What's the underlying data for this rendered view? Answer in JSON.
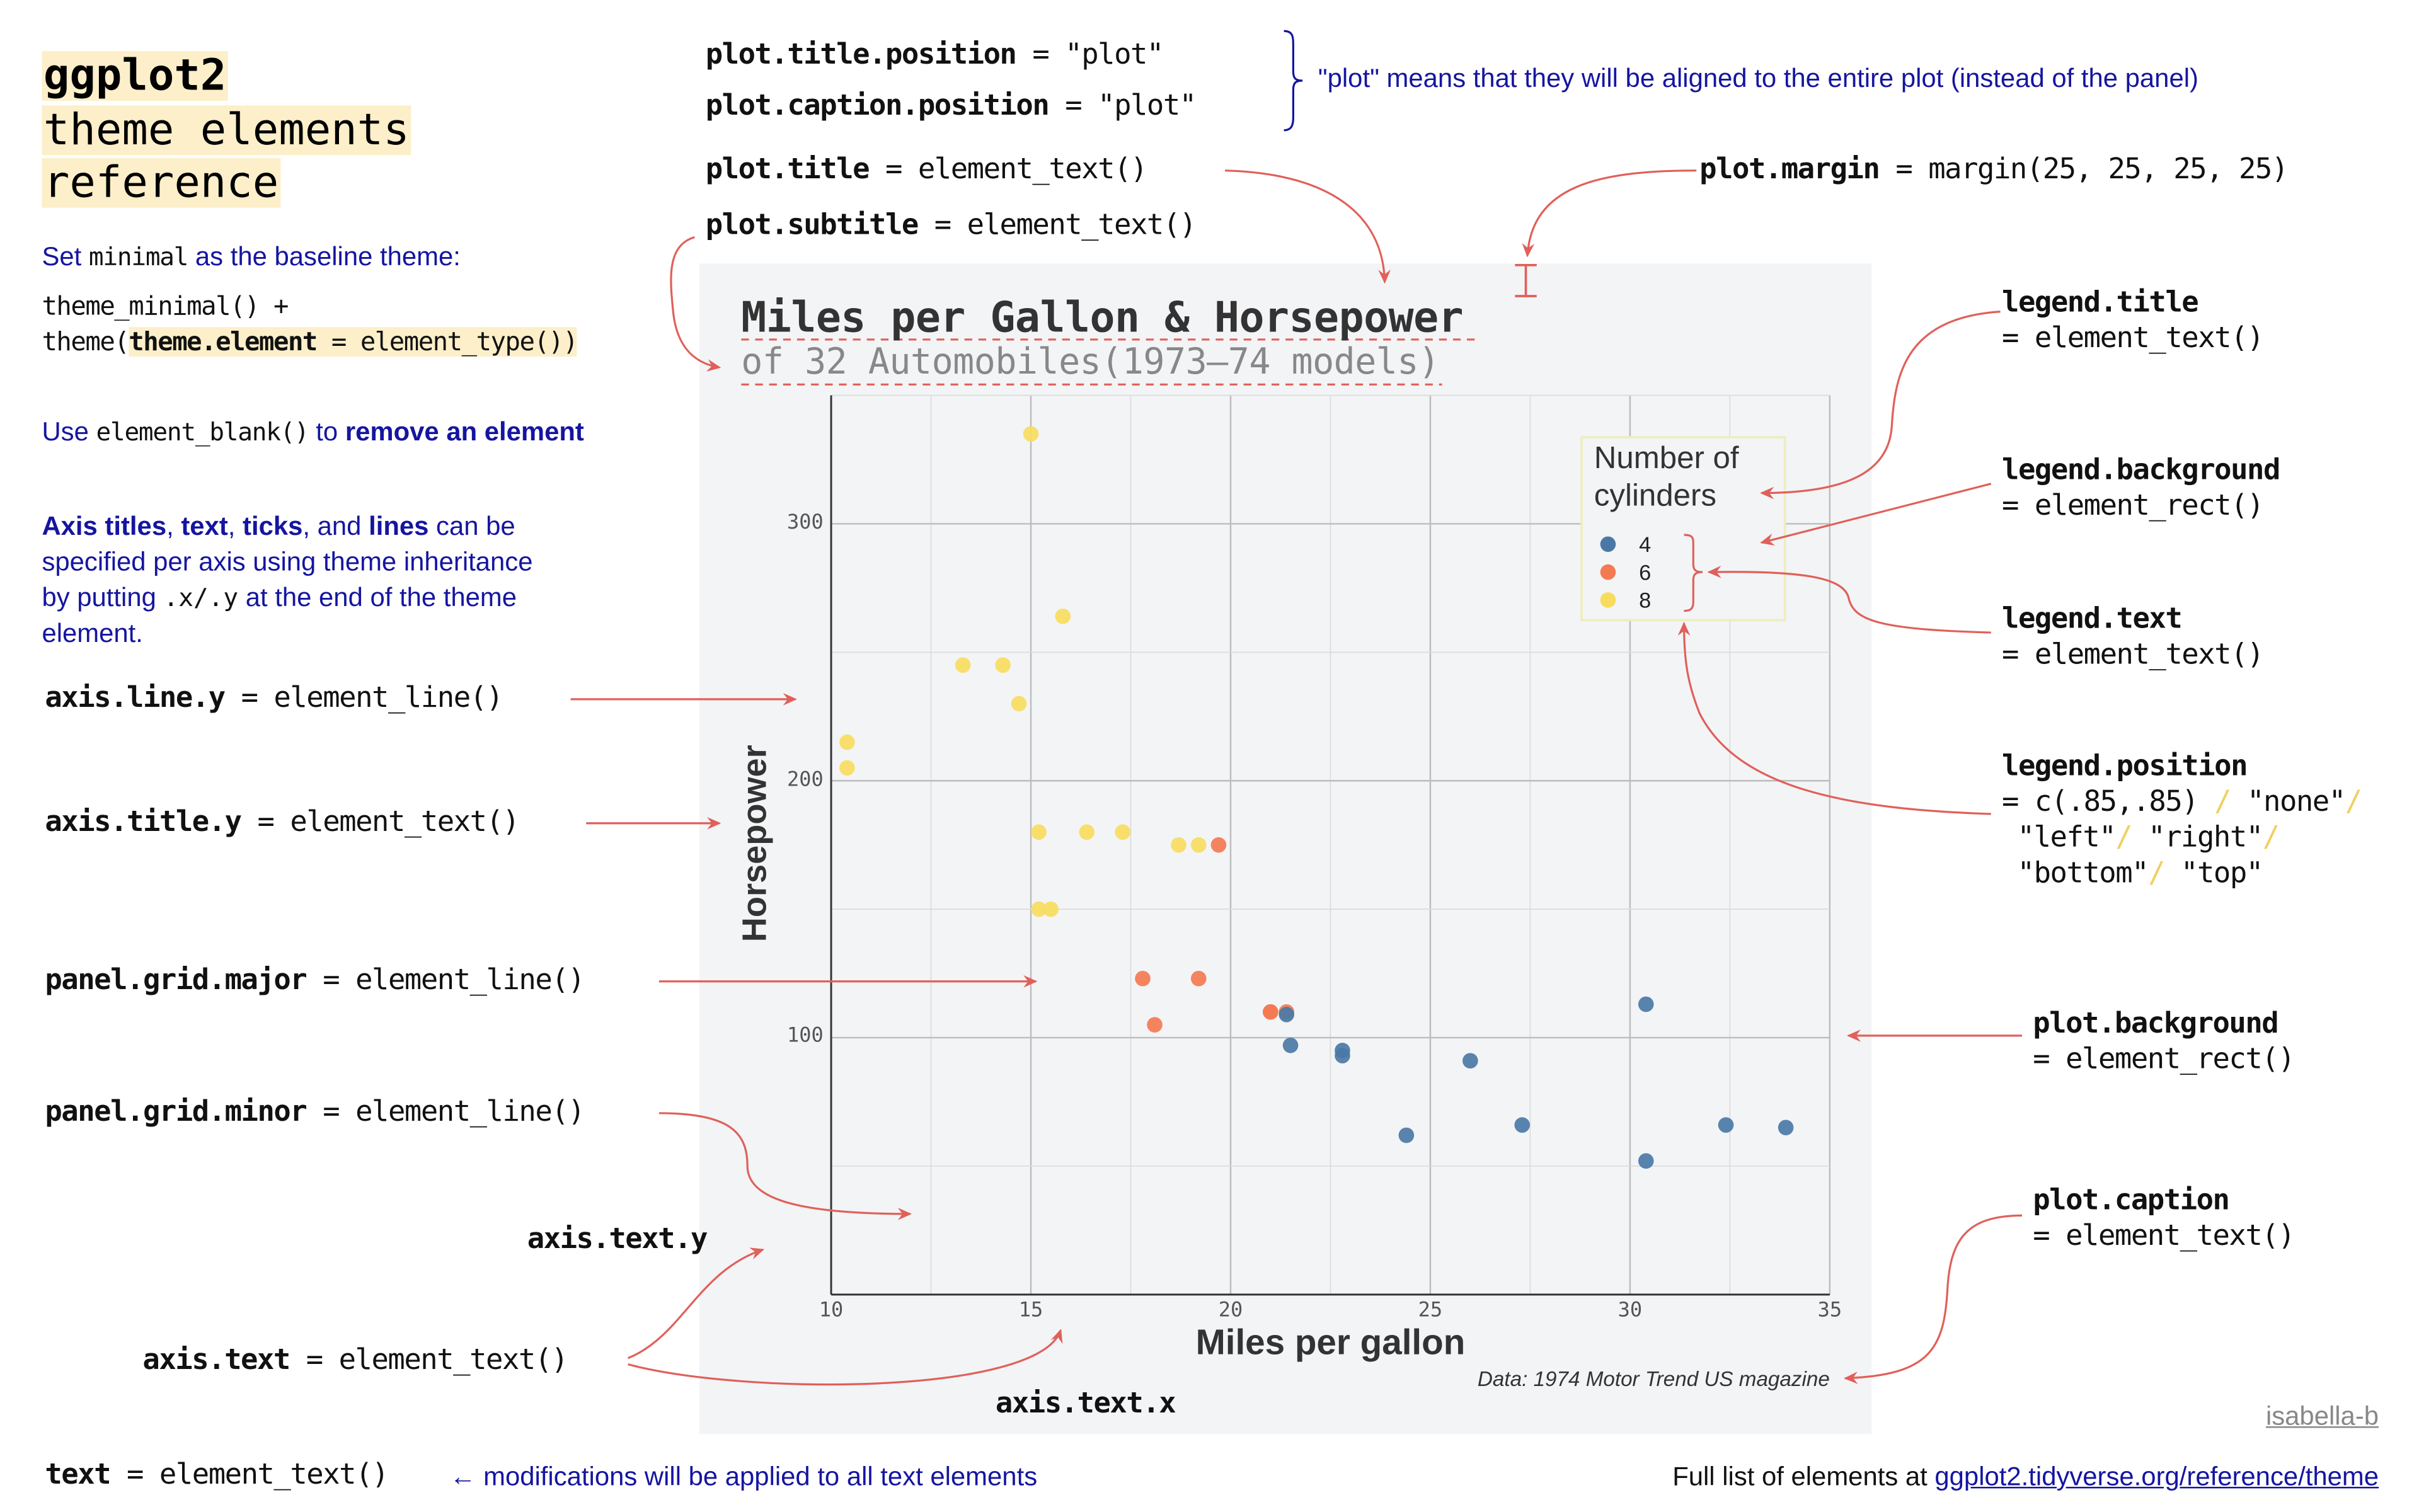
{
  "header": {
    "title_lines": [
      "ggplot2",
      "theme elements",
      "reference"
    ]
  },
  "left": {
    "baseline": {
      "pre": "Set",
      "code": "minimal",
      "post": "as the baseline theme:"
    },
    "code_line1": "theme_minimal() +",
    "code_line2_pre": "theme(",
    "code_line2_el": "theme.element",
    "code_line2_post": " = element_type())",
    "blank": {
      "pre": "Use",
      "code": "element_blank()",
      "mid": "to",
      "bold": "remove an element"
    },
    "axis_note": {
      "line1": [
        "Axis titles",
        ", ",
        "text",
        ", ",
        "ticks",
        ", and ",
        "lines",
        " can be"
      ],
      "line2": "specified per axis using theme inheritance",
      "line3_pre": "by putting",
      "line3_code": ".x/.y",
      "line3_post": "at the end of the theme",
      "line4": "element."
    }
  },
  "annotations": {
    "plot_title_position": {
      "name": "plot.title.position",
      "value": " = \"plot\""
    },
    "plot_caption_position": {
      "name": "plot.caption.position",
      "value": " = \"plot\""
    },
    "position_note": "\"plot\" means that they will be aligned to the entire plot (instead of the panel)",
    "plot_title": {
      "name": "plot.title",
      "value": " = element_text()"
    },
    "plot_subtitle": {
      "name": "plot.subtitle",
      "value": " = element_text()"
    },
    "plot_margin": {
      "name": "plot.margin",
      "value": " = margin(25, 25, 25, 25)"
    },
    "axis_line_y": {
      "name": "axis.line.y",
      "value": " = element_line()"
    },
    "axis_title_y": {
      "name": "axis.title.y",
      "value": " = element_text()"
    },
    "panel_grid_major": {
      "name": "panel.grid.major",
      "value": " = element_line()"
    },
    "panel_grid_minor": {
      "name": "panel.grid.minor",
      "value": " = element_line()"
    },
    "axis_text_y": {
      "name": "axis.text.y"
    },
    "axis_text": {
      "name": "axis.text",
      "value": " = element_text()"
    },
    "axis_text_x": {
      "name": "axis.text.x"
    },
    "text": {
      "name": "text",
      "value": " = element_text()",
      "note": "← modifications will be applied to all text elements"
    },
    "legend_title": {
      "name": "legend.title",
      "value": "= element_text()"
    },
    "legend_background": {
      "name": "legend.background",
      "value": "= element_rect()"
    },
    "legend_text": {
      "name": "legend.text",
      "value": "= element_text()"
    },
    "legend_position": {
      "name": "legend.position",
      "l1a": "= c(.85,.85) ",
      "l1b": "\"none\"",
      "l2a": " \"left\"",
      "l2b": "\"right\"",
      "l3a": " \"bottom\"",
      "l3b": "\"top\"",
      "sep": "/"
    },
    "plot_background": {
      "name": "plot.background",
      "value": "= element_rect()"
    },
    "plot_caption": {
      "name": "plot.caption",
      "value": "= element_text()"
    }
  },
  "footer": {
    "author": "isabella-b",
    "full_list_pre": "Full list of elements at ",
    "full_list_link": "ggplot2.tidyverse.org/reference/theme"
  },
  "colors": {
    "accent_arrow": "#e0605a",
    "note_blue": "#1515a0",
    "highlight": "#fcefc9",
    "plot_bg": "#f3f4f6"
  },
  "chart_data": {
    "type": "scatter",
    "title": "Miles per Gallon & Horsepower",
    "subtitle": "of 32 Automobiles(1973–74 models)",
    "xlabel": "Miles per gallon",
    "ylabel": "Horsepower",
    "caption": "Data: 1974 Motor Trend US magazine",
    "xlim": [
      10,
      35
    ],
    "ylim": [
      0,
      350
    ],
    "x_ticks": [
      "10",
      "15",
      "20",
      "25",
      "30",
      "35"
    ],
    "y_ticks": [
      "100",
      "200",
      "300"
    ],
    "grid": true,
    "legend": {
      "title_lines": [
        "Number of",
        "cylinders"
      ],
      "entries": [
        "4",
        "6",
        "8"
      ],
      "placement": "top-right (inside, c(.85,.85))"
    },
    "series_colors": {
      "4": "#4a78a6",
      "6": "#f47a52",
      "8": "#f8dc5e"
    },
    "points": [
      {
        "mpg": 21.0,
        "hp": 110,
        "cyl": "6"
      },
      {
        "mpg": 21.0,
        "hp": 110,
        "cyl": "6"
      },
      {
        "mpg": 22.8,
        "hp": 93,
        "cyl": "4"
      },
      {
        "mpg": 21.4,
        "hp": 110,
        "cyl": "6"
      },
      {
        "mpg": 18.7,
        "hp": 175,
        "cyl": "8"
      },
      {
        "mpg": 18.1,
        "hp": 105,
        "cyl": "6"
      },
      {
        "mpg": 14.3,
        "hp": 245,
        "cyl": "8"
      },
      {
        "mpg": 24.4,
        "hp": 62,
        "cyl": "4"
      },
      {
        "mpg": 22.8,
        "hp": 95,
        "cyl": "4"
      },
      {
        "mpg": 19.2,
        "hp": 123,
        "cyl": "6"
      },
      {
        "mpg": 17.8,
        "hp": 123,
        "cyl": "6"
      },
      {
        "mpg": 16.4,
        "hp": 180,
        "cyl": "8"
      },
      {
        "mpg": 17.3,
        "hp": 180,
        "cyl": "8"
      },
      {
        "mpg": 15.2,
        "hp": 180,
        "cyl": "8"
      },
      {
        "mpg": 10.4,
        "hp": 205,
        "cyl": "8"
      },
      {
        "mpg": 10.4,
        "hp": 215,
        "cyl": "8"
      },
      {
        "mpg": 14.7,
        "hp": 230,
        "cyl": "8"
      },
      {
        "mpg": 32.4,
        "hp": 66,
        "cyl": "4"
      },
      {
        "mpg": 30.4,
        "hp": 52,
        "cyl": "4"
      },
      {
        "mpg": 33.9,
        "hp": 65,
        "cyl": "4"
      },
      {
        "mpg": 21.5,
        "hp": 97,
        "cyl": "4"
      },
      {
        "mpg": 15.5,
        "hp": 150,
        "cyl": "8"
      },
      {
        "mpg": 15.2,
        "hp": 150,
        "cyl": "8"
      },
      {
        "mpg": 13.3,
        "hp": 245,
        "cyl": "8"
      },
      {
        "mpg": 19.2,
        "hp": 175,
        "cyl": "8"
      },
      {
        "mpg": 27.3,
        "hp": 66,
        "cyl": "4"
      },
      {
        "mpg": 26.0,
        "hp": 91,
        "cyl": "4"
      },
      {
        "mpg": 30.4,
        "hp": 113,
        "cyl": "4"
      },
      {
        "mpg": 15.8,
        "hp": 264,
        "cyl": "8"
      },
      {
        "mpg": 19.7,
        "hp": 175,
        "cyl": "6"
      },
      {
        "mpg": 15.0,
        "hp": 335,
        "cyl": "8"
      },
      {
        "mpg": 21.4,
        "hp": 109,
        "cyl": "4"
      }
    ]
  }
}
